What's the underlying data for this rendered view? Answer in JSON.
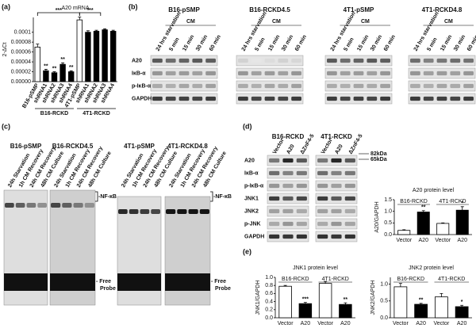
{
  "panel_labels": [
    "(a)",
    "(b)",
    "(c)",
    "(d)",
    "(e)"
  ],
  "chart_data": [
    {
      "type": "bar",
      "title": "A20 mRNA",
      "ylabel": "2-ΔCt",
      "categories": [
        "B16-pSMP",
        "shRNA1",
        "shRNA2",
        "shRNA3",
        "shRNA4",
        "4T1-pSMP",
        "shRNA1",
        "shRNA2",
        "shRNA3",
        "shRNA4"
      ],
      "values": [
        7e-05,
        2.2e-05,
        1.8e-05,
        3.5e-05,
        2e-05,
        0.000125,
        0.0001,
        0.000102,
        0.000105,
        0.000102
      ],
      "errors": [
        6e-06,
        3e-06,
        2e-06,
        3e-06,
        2e-06,
        6e-06,
        3e-06,
        2e-06,
        2e-06,
        2e-06
      ],
      "colors": [
        "#ffffff",
        "#000000",
        "#000000",
        "#000000",
        "#000000",
        "#ffffff",
        "#000000",
        "#000000",
        "#000000",
        "#000000"
      ],
      "value_labels": [
        null,
        "**",
        "**",
        "**",
        "**",
        null,
        null,
        null,
        null,
        null
      ],
      "brackets": [
        "***",
        "***"
      ],
      "groups": [
        "B16-RCKD",
        "4T1-RCKD"
      ],
      "ylim": [
        0,
        0.00013
      ],
      "yticks": [
        {
          "value": 0,
          "label": "0.00000"
        },
        2e-05,
        4e-05,
        6e-05,
        8e-05,
        0.0001
      ]
    },
    {
      "type": "bar",
      "title": "A20 protein level",
      "ylabel": "A20/GAPDH",
      "categories": [
        "Vector",
        "A20",
        "Vector",
        "A20"
      ],
      "values": [
        0.18,
        0.97,
        0.48,
        1.05
      ],
      "errors": [
        0.03,
        0.06,
        0.02,
        0.15
      ],
      "colors": [
        "#ffffff",
        "#000000",
        "#ffffff",
        "#000000"
      ],
      "value_labels": [
        null,
        "**",
        null,
        "*"
      ],
      "groups": [
        "B16-RCKD",
        "4T1-RCKD"
      ],
      "ylim": [
        0,
        1.5
      ],
      "yticks": [
        {
          "value": 0,
          "label": "0.0"
        },
        0.5,
        {
          "value": 1,
          "label": "1.0"
        },
        {
          "value": 1.5,
          "label": "1.5"
        }
      ]
    },
    {
      "type": "bar",
      "title": "JNK1 protein level",
      "ylabel": "JNK1/GAPDH",
      "categories": [
        "Vector",
        "A20",
        "Vector",
        "A20"
      ],
      "values": [
        0.78,
        0.35,
        0.85,
        0.33
      ],
      "errors": [
        0.02,
        0.03,
        0.05,
        0.04
      ],
      "colors": [
        "#ffffff",
        "#000000",
        "#ffffff",
        "#000000"
      ],
      "value_labels": [
        null,
        "***",
        null,
        "**"
      ],
      "groups": [
        "B16-RCKD",
        "4T1-RCKD"
      ],
      "ylim": [
        0,
        1.0
      ],
      "yticks": [
        {
          "value": 0,
          "label": "0.0"
        },
        0.2,
        0.4,
        0.6,
        0.8,
        {
          "value": 1,
          "label": "1.0"
        }
      ]
    },
    {
      "type": "bar",
      "title": "JNK2 protein level",
      "ylabel": "JNK2/GAPDH",
      "categories": [
        "Vector",
        "A20",
        "Vector",
        "A20"
      ],
      "values": [
        0.92,
        0.4,
        0.62,
        0.33
      ],
      "errors": [
        0.1,
        0.03,
        0.1,
        0.04
      ],
      "colors": [
        "#ffffff",
        "#000000",
        "#ffffff",
        "#000000"
      ],
      "value_labels": [
        null,
        "**",
        null,
        "*"
      ],
      "groups": [
        "B16-RCKD",
        "4T1-RCKD"
      ],
      "ylim": [
        0,
        1.2
      ],
      "yticks": [
        {
          "value": 0,
          "label": "0.0"
        },
        0.5,
        {
          "value": 1,
          "label": "1.0"
        }
      ]
    }
  ],
  "blot_b": {
    "groups": [
      "B16-pSMP",
      "B16-RCKD4.5",
      "4T1-pSMP",
      "4T1-RCKD4.8"
    ],
    "lanes": [
      "24 hrs starvation",
      "5 min",
      "15 min",
      "30 min",
      "60 min"
    ],
    "cm_label": "CM",
    "rows": [
      "A20",
      "IκB-α",
      "p-IκB-α",
      "GAPDH"
    ]
  },
  "emsa_c": {
    "groups": [
      "B16-pSMP",
      "B16-RCKD4.5",
      "4T1-pSMP",
      "4T1-RCKD4.8"
    ],
    "lanes": [
      "24h Starvation",
      "1h CM Recovery",
      "24h CM Recovery",
      "48h CM Culture"
    ],
    "nfkb": "-NF-κB",
    "free_probe": [
      "- Free",
      "Probe"
    ]
  },
  "blot_d": {
    "groups": [
      "B16-RCKD",
      "4T1-RCKD"
    ],
    "lanes": [
      "Vector",
      "A20",
      "ΔZnF4-5"
    ],
    "rows": [
      "A20",
      "IκB-α",
      "p-IκB-α",
      "JNK1",
      "JNK2",
      "p-JNK",
      "GAPDH"
    ],
    "markers": [
      "82kDa",
      "65kDa"
    ]
  }
}
